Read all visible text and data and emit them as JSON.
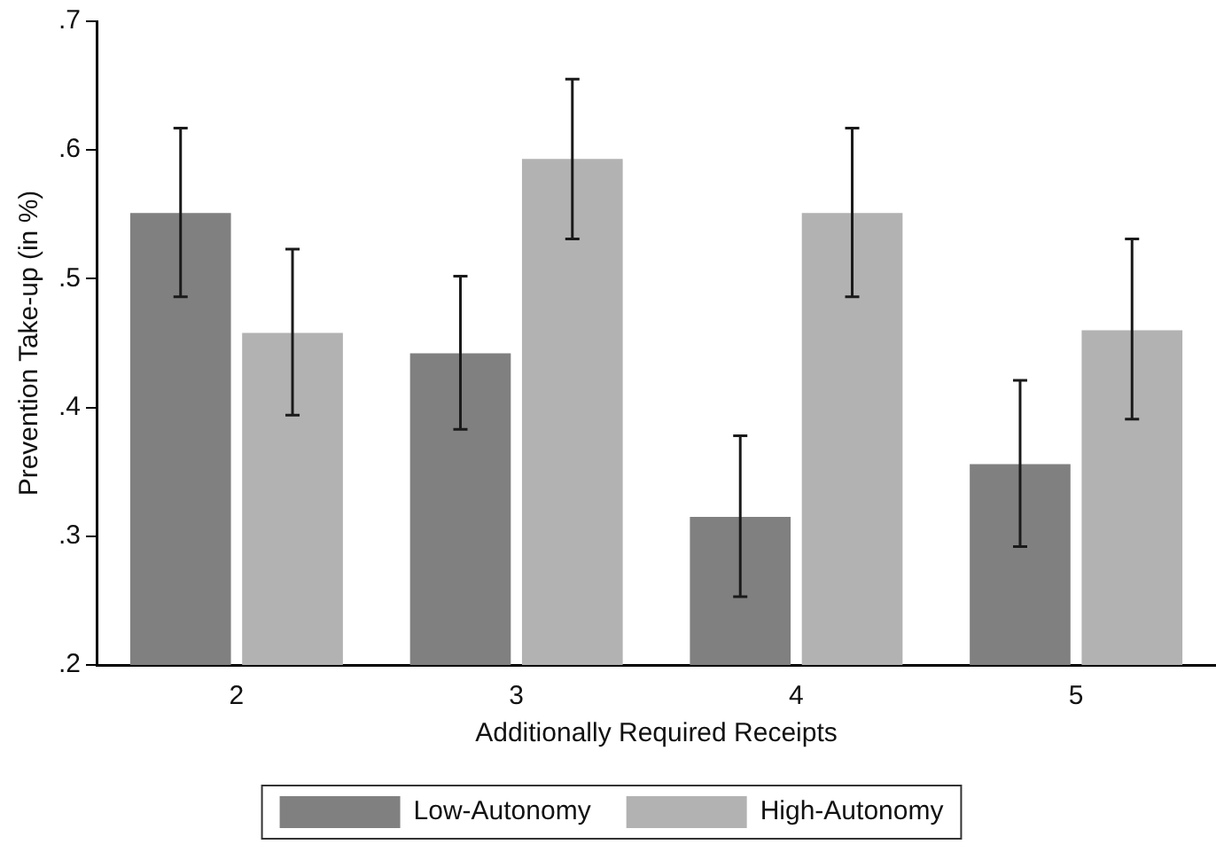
{
  "chart_data": {
    "type": "bar",
    "xlabel": "Additionally Required Receipts",
    "ylabel": "Prevention Take-up (in %)",
    "categories": [
      "2",
      "3",
      "4",
      "5"
    ],
    "series": [
      {
        "name": "Low-Autonomy",
        "color": "#808080",
        "values": [
          0.551,
          0.442,
          0.315,
          0.356
        ],
        "errors": [
          [
            0.486,
            0.617
          ],
          [
            0.383,
            0.502
          ],
          [
            0.253,
            0.378
          ],
          [
            0.292,
            0.421
          ]
        ]
      },
      {
        "name": "High-Autonomy",
        "color": "#b2b2b2",
        "values": [
          0.458,
          0.593,
          0.551,
          0.46
        ],
        "errors": [
          [
            0.394,
            0.523
          ],
          [
            0.531,
            0.655
          ],
          [
            0.486,
            0.617
          ],
          [
            0.391,
            0.531
          ]
        ]
      }
    ],
    "ylim": [
      0.2,
      0.7
    ],
    "yticks": [
      {
        "value": 0.2,
        "label": ".2"
      },
      {
        "value": 0.3,
        "label": ".3"
      },
      {
        "value": 0.4,
        "label": ".4"
      },
      {
        "value": 0.5,
        "label": ".5"
      },
      {
        "value": 0.6,
        "label": ".6"
      },
      {
        "value": 0.7,
        "label": ".7"
      }
    ],
    "grid": false,
    "legend": "bottom"
  }
}
